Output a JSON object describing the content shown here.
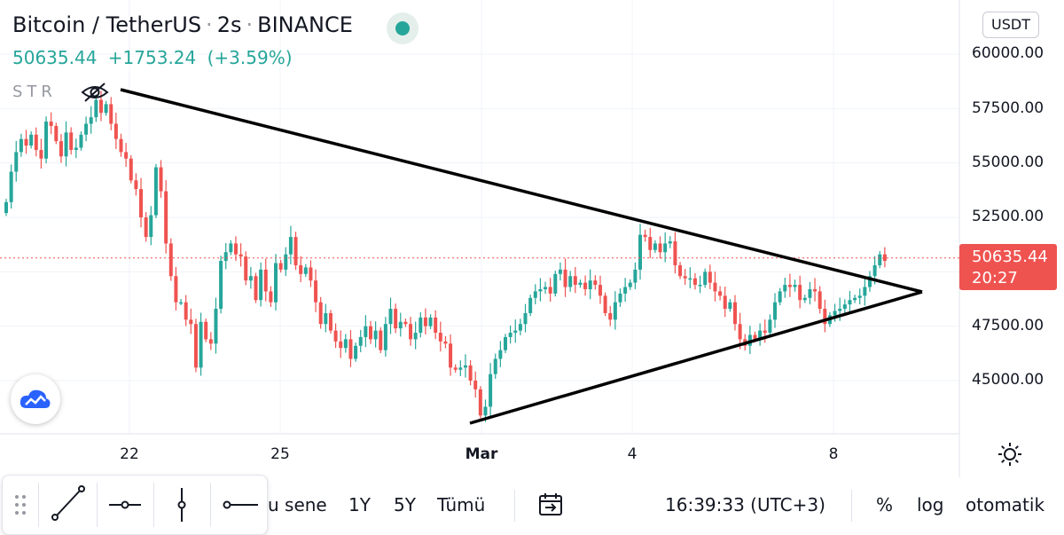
{
  "header": {
    "symbol": "Bitcoin / TetherUS",
    "interval": "2s",
    "exchange": "BINANCE",
    "sep1": "·",
    "sep2": "·",
    "last_price": "50635.44",
    "change": "+1753.24",
    "change_pct": "(+3.59%)",
    "indicator": "STR",
    "colors": {
      "up": "#26a69a",
      "down": "#ef5350",
      "live": "#26a69a"
    }
  },
  "price_axis": {
    "currency": "USDT",
    "labels": [
      "60000.00",
      "57500.00",
      "55000.00",
      "52500.00",
      "47500.00",
      "45000.00"
    ],
    "current_price": "50635.44",
    "countdown": "20:27"
  },
  "time_axis": {
    "labels": [
      {
        "text": "22",
        "bold": false
      },
      {
        "text": "25",
        "bold": false
      },
      {
        "text": "Mar",
        "bold": true
      },
      {
        "text": "4",
        "bold": false
      },
      {
        "text": "8",
        "bold": false
      }
    ]
  },
  "bottom_bar": {
    "ranges": [
      "u sene",
      "1Y",
      "5Y",
      "Tümü"
    ],
    "time": "16:39:33 (UTC+3)",
    "percent": "%",
    "log": "log",
    "auto": "otomatik"
  },
  "drawing_tools": [
    "dots-drag-icon",
    "trend-line-icon",
    "horizontal-ray-icon",
    "vertical-line-icon",
    "ray-icon"
  ],
  "chart_data": {
    "type": "candlestick",
    "title": "Bitcoin / TetherUS · 2s · BINANCE",
    "xlabel": "",
    "ylabel": "",
    "x_ticks": [
      "22",
      "25",
      "Mar",
      "4",
      "8"
    ],
    "y_ticks": [
      45000,
      47500,
      52500,
      55000,
      57500,
      60000
    ],
    "ylim": [
      42500,
      61000
    ],
    "grid": true,
    "last_price": 50635.44,
    "closes": [
      53200,
      54600,
      55500,
      56100,
      55800,
      56300,
      55600,
      55200,
      56900,
      56700,
      56000,
      55300,
      56400,
      55600,
      55700,
      56300,
      56800,
      57100,
      57900,
      57300,
      57700,
      56800,
      56100,
      55500,
      55200,
      54200,
      53800,
      52500,
      51600,
      52600,
      54800,
      53700,
      51300,
      49800,
      48600,
      48600,
      47800,
      47600,
      45600,
      47700,
      46900,
      46700,
      48300,
      50500,
      50900,
      51300,
      50800,
      50700,
      49600,
      49800,
      48700,
      50100,
      49100,
      48600,
      50400,
      50100,
      50800,
      51600,
      50300,
      49900,
      50200,
      49600,
      48600,
      47600,
      48100,
      47300,
      46800,
      46500,
      46900,
      46000,
      46600,
      47000,
      47500,
      46900,
      47300,
      46400,
      47600,
      48300,
      47400,
      47700,
      47600,
      46900,
      47200,
      47900,
      47500,
      47900,
      47200,
      46800,
      46700,
      45600,
      45500,
      45600,
      45700,
      45000,
      44600,
      43400,
      43800,
      45300,
      46000,
      46400,
      47000,
      47200,
      47300,
      47600,
      48100,
      48800,
      49100,
      49200,
      49300,
      49000,
      49900,
      50100,
      49300,
      49800,
      49400,
      49500,
      49200,
      49600,
      49400,
      48900,
      48100,
      47800,
      48600,
      49000,
      49300,
      49500,
      50100,
      51700,
      51600,
      51000,
      51300,
      50900,
      51300,
      51400,
      50300,
      49800,
      49700,
      49700,
      49400,
      49400,
      50000,
      49500,
      49100,
      48900,
      48300,
      48600,
      47600,
      46900,
      46600,
      47100,
      46900,
      47300,
      47200,
      47800,
      48600,
      49100,
      49400,
      49300,
      49400,
      48700,
      48800,
      49200,
      49100,
      48300,
      47600,
      48000,
      48200,
      48300,
      48500,
      48700,
      48800,
      48900,
      49300,
      49800,
      50300,
      50800,
      50500
    ]
  }
}
